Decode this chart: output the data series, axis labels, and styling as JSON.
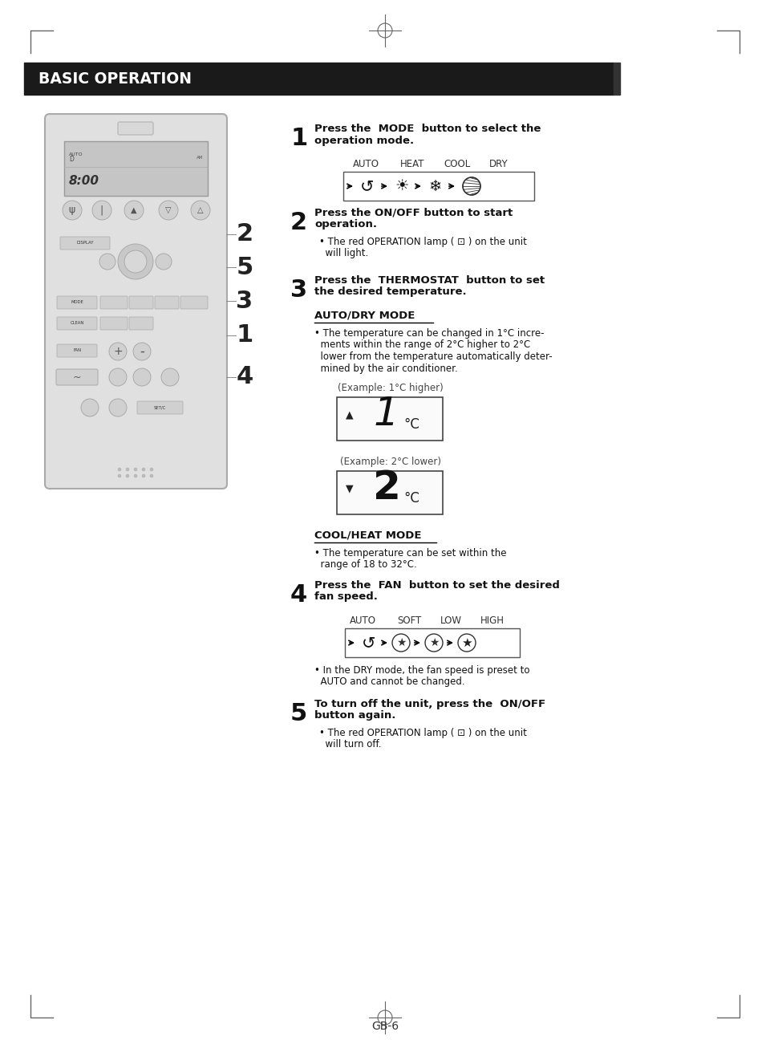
{
  "bg_color": "#ffffff",
  "title_bar_color": "#1a1a1a",
  "title_text": "BASIC OPERATION",
  "title_text_color": "#ffffff",
  "page_number": "GB-6",
  "step1_line1": "Press the  MODE  button to select the",
  "step1_line2": "operation mode.",
  "step1_labels": [
    "AUTO",
    "HEAT",
    "COOL",
    "DRY"
  ],
  "step2_line1": "Press the ON/OFF button to start",
  "step2_line2": "operation.",
  "step2_bullet1": "• The red OPERATION lamp ( ⊡ ) on the unit",
  "step2_bullet2": "  will light.",
  "step3_line1": "Press the  THERMOSTAT  button to set",
  "step3_line2": "the desired temperature.",
  "auto_dry_heading": "AUTO/DRY MODE",
  "auto_dry_b1": "• The temperature can be changed in 1°C incre-",
  "auto_dry_b2": "  ments within the range of 2°C higher to 2°C",
  "auto_dry_b3": "  lower from the temperature automatically deter-",
  "auto_dry_b4": "  mined by the air conditioner.",
  "ex1_label": "(Example: 1°C higher)",
  "ex2_label": "(Example: 2°C lower)",
  "cool_heat_heading": "COOL/HEAT MODE",
  "cool_heat_b1": "• The temperature can be set within the",
  "cool_heat_b2": "  range of 18 to 32°C.",
  "step4_line1": "Press the  FAN  button to set the desired",
  "step4_line2": "fan speed.",
  "step4_labels": [
    "AUTO",
    "SOFT",
    "LOW",
    "HIGH"
  ],
  "step4_b1": "• In the DRY mode, the fan speed is preset to",
  "step4_b2": "  AUTO and cannot be changed.",
  "step5_line1": "To turn off the unit, press the  ON/OFF",
  "step5_line2": "button again.",
  "step5_b1": "• The red OPERATION lamp ( ⊡ ) on the unit",
  "step5_b2": "  will turn off."
}
